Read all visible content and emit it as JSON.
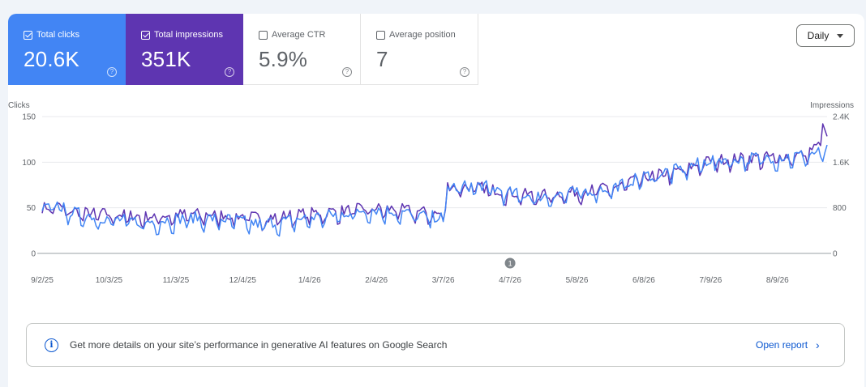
{
  "metrics": [
    {
      "label": "Total clicks",
      "value": "20.6K",
      "checked": true,
      "color": "#4285f4"
    },
    {
      "label": "Total impressions",
      "value": "351K",
      "checked": true,
      "color": "#5e35b1"
    },
    {
      "label": "Average CTR",
      "value": "5.9%",
      "checked": false
    },
    {
      "label": "Average position",
      "value": "7",
      "checked": false
    }
  ],
  "granularity": {
    "selected": "Daily"
  },
  "info_banner": {
    "text": "Get more details on your site’s performance in generative AI features on Google Search",
    "link": "Open report",
    "icon": "info-icon"
  },
  "chart_data": {
    "type": "line",
    "left_axis": {
      "label": "Clicks",
      "ticks": [
        0,
        50,
        100,
        150
      ],
      "tick_labels": [
        "0",
        "50",
        "100",
        "150"
      ],
      "ylim": [
        0,
        150
      ]
    },
    "right_axis": {
      "label": "Impressions",
      "ticks": [
        0,
        800,
        1600,
        2400
      ],
      "tick_labels": [
        "0",
        "800",
        "1.6K",
        "2.4K"
      ],
      "ylim": [
        0,
        2400
      ]
    },
    "x_ticks": [
      "9/2/25",
      "10/3/25",
      "11/3/25",
      "12/4/25",
      "1/4/26",
      "2/4/26",
      "3/7/26",
      "4/7/26",
      "5/8/26",
      "6/8/26",
      "7/9/26",
      "8/9/26"
    ],
    "x_range": [
      "2025-09-02",
      "2026-09-01"
    ],
    "annotation": {
      "label": "1",
      "date": "2026-04-07"
    },
    "grid": true,
    "series": [
      {
        "name": "Clicks",
        "axis": "left",
        "color": "#4285f4",
        "anchors": [
          [
            "2025-09-02",
            45
          ],
          [
            "2025-09-08",
            52
          ],
          [
            "2025-09-15",
            43
          ],
          [
            "2025-09-22",
            40
          ],
          [
            "2025-10-01",
            36
          ],
          [
            "2025-10-10",
            34
          ],
          [
            "2025-10-20",
            32
          ],
          [
            "2025-11-01",
            35
          ],
          [
            "2025-11-10",
            37
          ],
          [
            "2025-11-20",
            36
          ],
          [
            "2025-12-01",
            34
          ],
          [
            "2025-12-10",
            30
          ],
          [
            "2025-12-20",
            32
          ],
          [
            "2026-01-01",
            36
          ],
          [
            "2026-01-15",
            40
          ],
          [
            "2026-02-01",
            46
          ],
          [
            "2026-02-15",
            43
          ],
          [
            "2026-02-28",
            38
          ],
          [
            "2026-03-07",
            37
          ],
          [
            "2026-03-09",
            70
          ],
          [
            "2026-03-25",
            72
          ],
          [
            "2026-04-07",
            64
          ],
          [
            "2026-04-20",
            60
          ],
          [
            "2026-05-08",
            65
          ],
          [
            "2026-05-25",
            70
          ],
          [
            "2026-06-08",
            82
          ],
          [
            "2026-06-25",
            90
          ],
          [
            "2026-07-09",
            100
          ],
          [
            "2026-07-25",
            102
          ],
          [
            "2026-08-09",
            103
          ],
          [
            "2026-08-20",
            105
          ],
          [
            "2026-09-01",
            110
          ]
        ],
        "noise": 8
      },
      {
        "name": "Impressions",
        "axis": "right",
        "color": "#5e35b1",
        "anchors": [
          [
            "2025-09-02",
            760
          ],
          [
            "2025-09-08",
            810
          ],
          [
            "2025-09-15",
            720
          ],
          [
            "2025-09-22",
            680
          ],
          [
            "2025-10-01",
            660
          ],
          [
            "2025-10-10",
            640
          ],
          [
            "2025-10-20",
            610
          ],
          [
            "2025-11-01",
            640
          ],
          [
            "2025-11-10",
            660
          ],
          [
            "2025-11-20",
            650
          ],
          [
            "2025-12-01",
            630
          ],
          [
            "2025-12-10",
            600
          ],
          [
            "2025-12-20",
            610
          ],
          [
            "2026-01-01",
            660
          ],
          [
            "2026-01-15",
            700
          ],
          [
            "2026-02-01",
            760
          ],
          [
            "2026-02-15",
            740
          ],
          [
            "2026-02-28",
            680
          ],
          [
            "2026-03-07",
            640
          ],
          [
            "2026-03-09",
            1150
          ],
          [
            "2026-03-25",
            1120
          ],
          [
            "2026-04-07",
            1030
          ],
          [
            "2026-04-20",
            980
          ],
          [
            "2026-05-08",
            1050
          ],
          [
            "2026-05-25",
            1120
          ],
          [
            "2026-06-08",
            1300
          ],
          [
            "2026-06-25",
            1420
          ],
          [
            "2026-07-09",
            1600
          ],
          [
            "2026-07-25",
            1640
          ],
          [
            "2026-08-09",
            1660
          ],
          [
            "2026-08-20",
            1700
          ],
          [
            "2026-08-28",
            1850
          ],
          [
            "2026-08-30",
            2300
          ],
          [
            "2026-09-01",
            1950
          ]
        ],
        "noise": 120
      }
    ]
  }
}
